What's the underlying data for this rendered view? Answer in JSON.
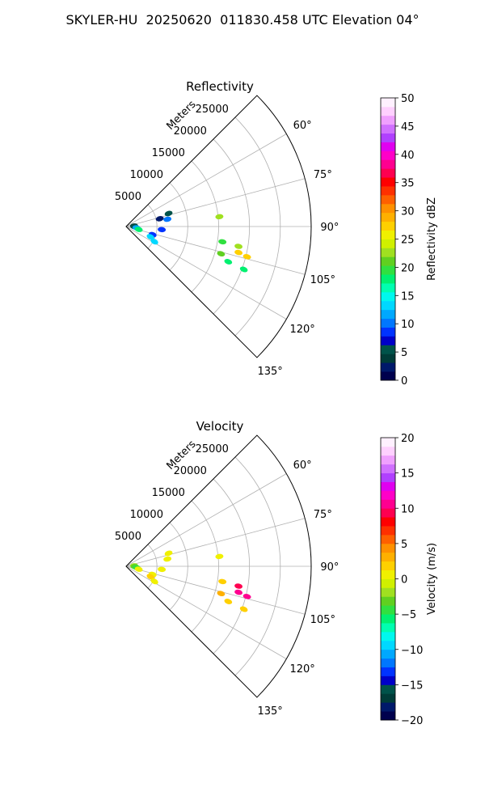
{
  "figure_title": "SKYLER-HU  20250620  011830.458 UTC Elevation 04°",
  "chart_data": [
    {
      "type": "polar-sector",
      "title": "Reflectivity",
      "r_label": "Meters",
      "r_ticks": [
        5000,
        10000,
        15000,
        20000,
        25000
      ],
      "r_tick_labels": [
        "5000",
        "10000",
        "15000",
        "20000",
        "25000"
      ],
      "rlim": [
        0,
        30000
      ],
      "theta_range_deg": [
        45,
        135
      ],
      "theta_ticks_deg": [
        60,
        75,
        90,
        105,
        120,
        135
      ],
      "theta_tick_labels": [
        "60°",
        "75°",
        "90°",
        "105°",
        "120°",
        "135°"
      ],
      "grid": true,
      "colorbar": {
        "label": "Reflectivity dBZ",
        "range": [
          0,
          50
        ],
        "ticks": [
          0,
          5,
          10,
          15,
          20,
          25,
          30,
          35,
          40,
          45,
          50
        ],
        "tick_labels": [
          "0",
          "5",
          "10",
          "15",
          "20",
          "25",
          "30",
          "35",
          "40",
          "45",
          "50"
        ],
        "colors": [
          "#00004d",
          "#00196a",
          "#003c38",
          "#00534a",
          "#0000c8",
          "#0033ff",
          "#0077ff",
          "#00a8ff",
          "#00d8ff",
          "#00f8ee",
          "#00ffb0",
          "#00f070",
          "#30e040",
          "#60d020",
          "#a0e020",
          "#d0f000",
          "#f0f000",
          "#ffd000",
          "#ffb000",
          "#ff9000",
          "#ff6000",
          "#ff3000",
          "#ff0000",
          "#ff0050",
          "#ff0090",
          "#ff00c8",
          "#e000f0",
          "#b040ff",
          "#d070ff",
          "#f0a0ff",
          "#ffd0ff",
          "#fff0ff"
        ]
      },
      "echoes": [
        {
          "azimuth_deg": 73,
          "range_m": 7200,
          "value": 6
        },
        {
          "azimuth_deg": 77,
          "range_m": 5600,
          "value": 3
        },
        {
          "azimuth_deg": 80,
          "range_m": 6800,
          "value": 10
        },
        {
          "azimuth_deg": 86,
          "range_m": 1300,
          "value": 4
        },
        {
          "azimuth_deg": 92,
          "range_m": 1400,
          "value": 6
        },
        {
          "azimuth_deg": 97,
          "range_m": 1700,
          "value": 12
        },
        {
          "azimuth_deg": 103,
          "range_m": 2100,
          "value": 18
        },
        {
          "azimuth_deg": 95,
          "range_m": 5800,
          "value": 9
        },
        {
          "azimuth_deg": 107,
          "range_m": 4500,
          "value": 8
        },
        {
          "azimuth_deg": 113,
          "range_m": 4300,
          "value": 13
        },
        {
          "azimuth_deg": 118,
          "range_m": 5200,
          "value": 14
        },
        {
          "azimuth_deg": 84,
          "range_m": 15200,
          "value": 22
        },
        {
          "azimuth_deg": 99,
          "range_m": 15800,
          "value": 20
        },
        {
          "azimuth_deg": 106,
          "range_m": 16000,
          "value": 21
        },
        {
          "azimuth_deg": 109,
          "range_m": 17500,
          "value": 18
        },
        {
          "azimuth_deg": 100,
          "range_m": 18500,
          "value": 23
        },
        {
          "azimuth_deg": 103,
          "range_m": 18700,
          "value": 28
        },
        {
          "azimuth_deg": 104,
          "range_m": 20200,
          "value": 27
        },
        {
          "azimuth_deg": 110,
          "range_m": 20300,
          "value": 18
        }
      ]
    },
    {
      "type": "polar-sector",
      "title": "Velocity",
      "r_label": "Meters",
      "r_ticks": [
        5000,
        10000,
        15000,
        20000,
        25000
      ],
      "r_tick_labels": [
        "5000",
        "10000",
        "15000",
        "20000",
        "25000"
      ],
      "rlim": [
        0,
        30000
      ],
      "theta_range_deg": [
        45,
        135
      ],
      "theta_ticks_deg": [
        60,
        75,
        90,
        105,
        120,
        135
      ],
      "theta_tick_labels": [
        "60°",
        "75°",
        "90°",
        "105°",
        "120°",
        "135°"
      ],
      "grid": true,
      "colorbar": {
        "label": "Velocity (m/s)",
        "range": [
          -20,
          20
        ],
        "ticks": [
          -20,
          -15,
          -10,
          -5,
          0,
          5,
          10,
          15,
          20
        ],
        "tick_labels": [
          "−20",
          "−15",
          "−10",
          "−5",
          "0",
          "5",
          "10",
          "15",
          "20"
        ],
        "colors": [
          "#00004d",
          "#00196a",
          "#003c38",
          "#00534a",
          "#0000c8",
          "#0033ff",
          "#0077ff",
          "#00a8ff",
          "#00d8ff",
          "#00f8ee",
          "#00ffb0",
          "#00f070",
          "#30e040",
          "#60d020",
          "#a0e020",
          "#d0f000",
          "#f0f000",
          "#ffd000",
          "#ffb000",
          "#ff9000",
          "#ff6000",
          "#ff3000",
          "#ff0000",
          "#ff0050",
          "#ff0090",
          "#ff00c8",
          "#e000f0",
          "#b040ff",
          "#d070ff",
          "#f0a0ff",
          "#ffd0ff",
          "#fff0ff"
        ]
      },
      "echoes": [
        {
          "azimuth_deg": 73,
          "range_m": 7200,
          "value": 1
        },
        {
          "azimuth_deg": 80,
          "range_m": 6800,
          "value": 0
        },
        {
          "azimuth_deg": 86,
          "range_m": 1300,
          "value": -2
        },
        {
          "azimuth_deg": 92,
          "range_m": 1400,
          "value": -3
        },
        {
          "azimuth_deg": 97,
          "range_m": 1700,
          "value": -4
        },
        {
          "azimuth_deg": 103,
          "range_m": 2100,
          "value": 0
        },
        {
          "azimuth_deg": 95,
          "range_m": 5800,
          "value": 1
        },
        {
          "azimuth_deg": 107,
          "range_m": 4500,
          "value": 1
        },
        {
          "azimuth_deg": 113,
          "range_m": 4300,
          "value": 2
        },
        {
          "azimuth_deg": 118,
          "range_m": 5200,
          "value": 1
        },
        {
          "azimuth_deg": 84,
          "range_m": 15200,
          "value": 1
        },
        {
          "azimuth_deg": 99,
          "range_m": 15800,
          "value": 2
        },
        {
          "azimuth_deg": 106,
          "range_m": 16000,
          "value": 3
        },
        {
          "azimuth_deg": 109,
          "range_m": 17500,
          "value": 2
        },
        {
          "azimuth_deg": 100,
          "range_m": 18500,
          "value": 9
        },
        {
          "azimuth_deg": 103,
          "range_m": 18700,
          "value": 10
        },
        {
          "azimuth_deg": 104,
          "range_m": 20200,
          "value": 11
        },
        {
          "azimuth_deg": 110,
          "range_m": 20300,
          "value": 2
        }
      ]
    }
  ]
}
